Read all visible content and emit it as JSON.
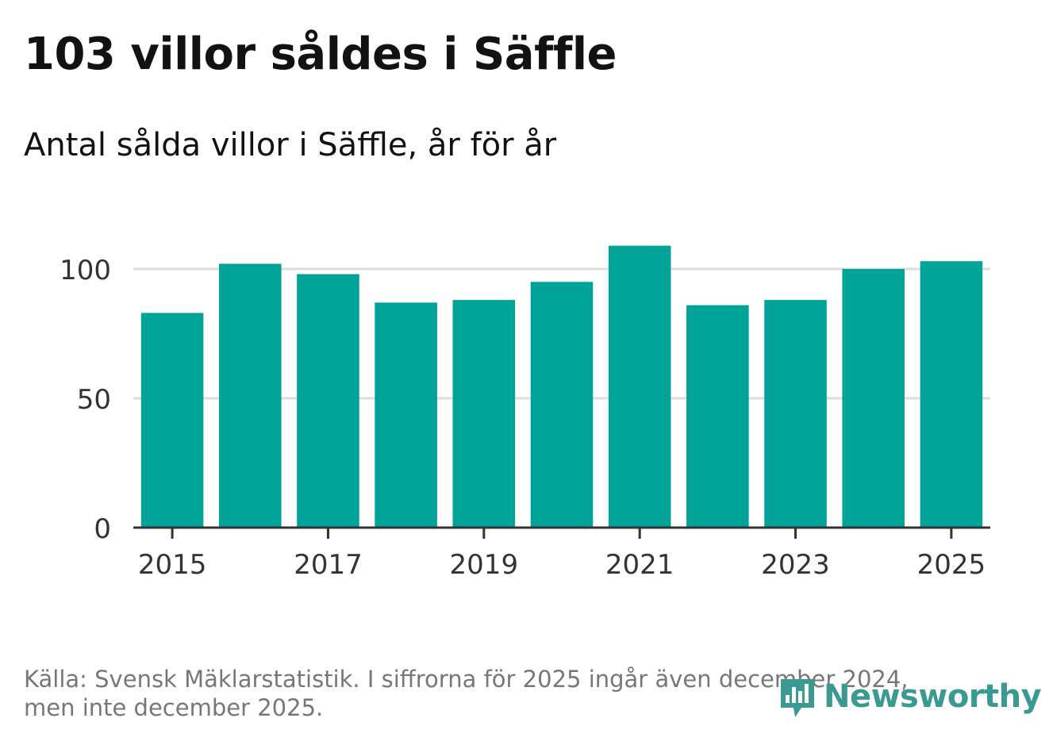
{
  "header": {
    "title": "103 villor såldes i Säffle",
    "subtitle": "Antal sålda villor i Säffle, år för år"
  },
  "chart_data": {
    "type": "bar",
    "categories": [
      "2015",
      "2016",
      "2017",
      "2018",
      "2019",
      "2020",
      "2021",
      "2022",
      "2023",
      "2024",
      "2025"
    ],
    "values": [
      83,
      102,
      98,
      87,
      88,
      95,
      109,
      86,
      88,
      100,
      103
    ],
    "x_tick_labels": [
      "2015",
      "2017",
      "2019",
      "2021",
      "2023",
      "2025"
    ],
    "y_ticks": [
      0,
      50,
      100
    ],
    "ylim": [
      0,
      115
    ],
    "grid": true,
    "bar_color": "#00a398"
  },
  "footer": {
    "source_line1": "Källa: Svensk Mäklarstatistik. I siffrorna för 2025 ingår även december 2024,",
    "source_line2": "men inte december 2025.",
    "logo_text": "Newsworthy",
    "logo_icon": "newsworthy-chart-icon",
    "logo_color": "#3a9a92"
  }
}
